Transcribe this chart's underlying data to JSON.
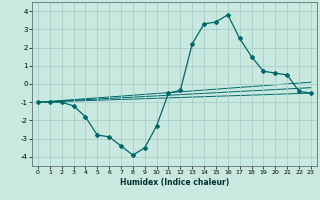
{
  "title": "",
  "xlabel": "Humidex (Indice chaleur)",
  "ylabel": "",
  "background_color": "#c8e8e0",
  "grid_color": "#a8d0c8",
  "line_color": "#006868",
  "xlim": [
    -0.5,
    23.5
  ],
  "ylim": [
    -4.5,
    4.5
  ],
  "yticks": [
    -4,
    -3,
    -2,
    -1,
    0,
    1,
    2,
    3,
    4
  ],
  "xticks": [
    0,
    1,
    2,
    3,
    4,
    5,
    6,
    7,
    8,
    9,
    10,
    11,
    12,
    13,
    14,
    15,
    16,
    17,
    18,
    19,
    20,
    21,
    22,
    23
  ],
  "series": [
    [
      0,
      -1.0
    ],
    [
      1,
      -1.0
    ],
    [
      2,
      -1.0
    ],
    [
      3,
      -1.2
    ],
    [
      4,
      -1.8
    ],
    [
      5,
      -2.8
    ],
    [
      6,
      -2.9
    ],
    [
      7,
      -3.4
    ],
    [
      8,
      -3.9
    ],
    [
      9,
      -3.5
    ],
    [
      10,
      -2.3
    ],
    [
      11,
      -0.5
    ],
    [
      12,
      -0.35
    ],
    [
      13,
      2.2
    ],
    [
      14,
      3.3
    ],
    [
      15,
      3.4
    ],
    [
      16,
      3.8
    ],
    [
      17,
      2.5
    ],
    [
      18,
      1.5
    ],
    [
      19,
      0.7
    ],
    [
      20,
      0.6
    ],
    [
      21,
      0.5
    ],
    [
      22,
      -0.4
    ],
    [
      23,
      -0.5
    ]
  ],
  "line2": [
    [
      0,
      -1.0
    ],
    [
      23,
      -0.5
    ]
  ],
  "line3": [
    [
      0,
      -1.0
    ],
    [
      23,
      -0.2
    ]
  ],
  "line4": [
    [
      0,
      -1.0
    ],
    [
      23,
      0.1
    ]
  ]
}
